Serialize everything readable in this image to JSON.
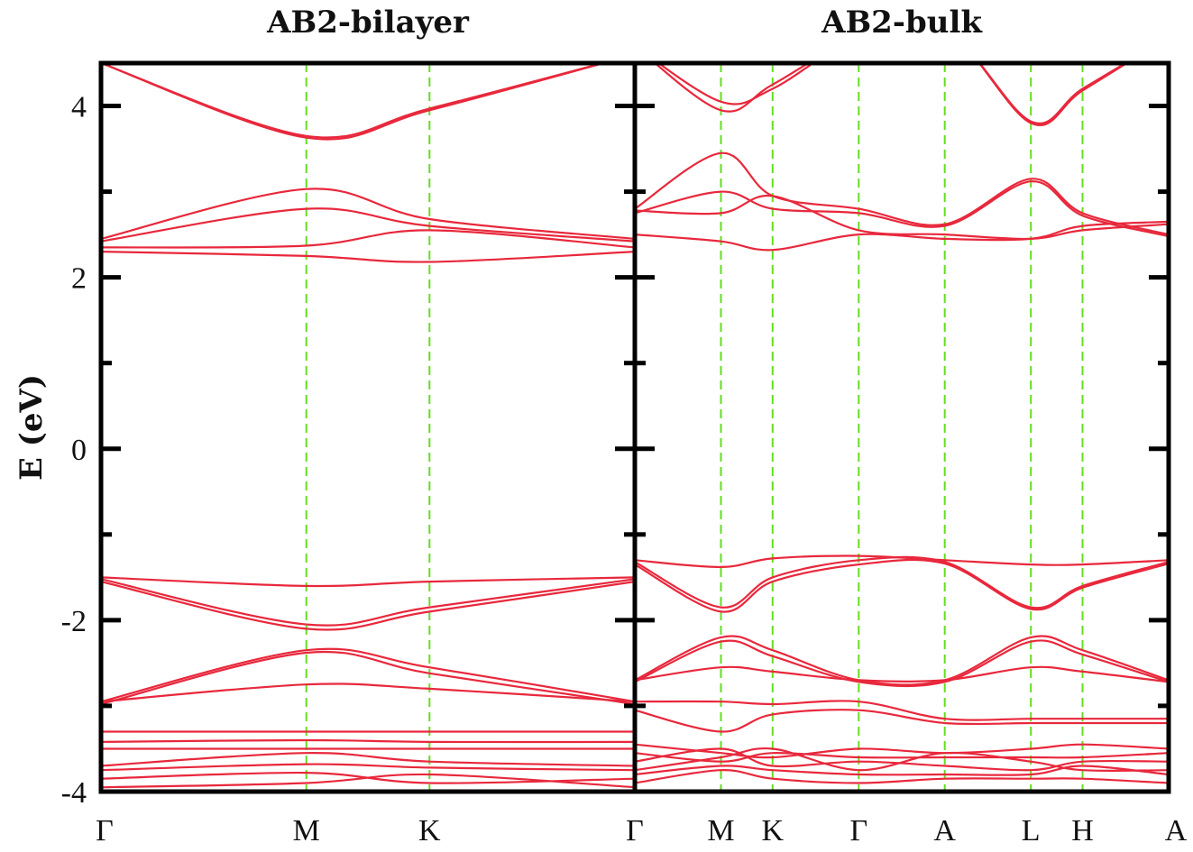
{
  "chart_data": {
    "type": "line",
    "ylabel": "E (eV)",
    "ylim": [
      -4,
      4.5
    ],
    "yticks": [
      "4",
      "2",
      "0",
      "-2",
      "-4"
    ],
    "line_color": "#e8283c",
    "symmetry_line_color": "#66dd22",
    "panels": [
      {
        "title": "AB2-bilayer",
        "kpath": [
          "Γ",
          "M",
          "K",
          "Γ"
        ],
        "kpos": [
          0,
          1,
          1.6,
          2.6
        ],
        "bands": [
          {
            "x": [
              0,
              1,
              1.6,
              2.6
            ],
            "y": [
              4.5,
              3.65,
              3.97,
              4.6
            ]
          },
          {
            "x": [
              0,
              1,
              1.6,
              2.6
            ],
            "y": [
              4.5,
              3.63,
              3.95,
              4.6
            ]
          },
          {
            "x": [
              0,
              1,
              1.6,
              2.6
            ],
            "y": [
              2.45,
              3.03,
              2.68,
              2.45
            ]
          },
          {
            "x": [
              0,
              1,
              1.6,
              2.6
            ],
            "y": [
              2.42,
              2.8,
              2.6,
              2.42
            ]
          },
          {
            "x": [
              0,
              1,
              1.6,
              2.6
            ],
            "y": [
              2.35,
              2.37,
              2.55,
              2.35
            ]
          },
          {
            "x": [
              0,
              1,
              1.6,
              2.6
            ],
            "y": [
              2.3,
              2.25,
              2.18,
              2.3
            ]
          },
          {
            "x": [
              0,
              1,
              1.6,
              2.6
            ],
            "y": [
              -1.5,
              -1.6,
              -1.55,
              -1.5
            ]
          },
          {
            "x": [
              0,
              1,
              1.6,
              2.6
            ],
            "y": [
              -1.52,
              -2.05,
              -1.85,
              -1.52
            ]
          },
          {
            "x": [
              0,
              1,
              1.6,
              2.6
            ],
            "y": [
              -1.55,
              -2.1,
              -1.9,
              -1.55
            ]
          },
          {
            "x": [
              0,
              1,
              1.6,
              2.6
            ],
            "y": [
              -2.95,
              -2.35,
              -2.55,
              -2.95
            ]
          },
          {
            "x": [
              0,
              1,
              1.6,
              2.6
            ],
            "y": [
              -2.98,
              -2.38,
              -2.62,
              -2.98
            ]
          },
          {
            "x": [
              0,
              1,
              1.6,
              2.6
            ],
            "y": [
              -2.95,
              -2.75,
              -2.8,
              -2.95
            ]
          },
          {
            "x": [
              0,
              1,
              1.6,
              2.6
            ],
            "y": [
              -3.3,
              -3.3,
              -3.3,
              -3.3
            ]
          },
          {
            "x": [
              0,
              1,
              1.6,
              2.6
            ],
            "y": [
              -3.42,
              -3.4,
              -3.42,
              -3.42
            ]
          },
          {
            "x": [
              0,
              1,
              1.6,
              2.6
            ],
            "y": [
              -3.5,
              -3.5,
              -3.5,
              -3.5
            ]
          },
          {
            "x": [
              0,
              1,
              1.6,
              2.6
            ],
            "y": [
              -3.7,
              -3.55,
              -3.65,
              -3.7
            ]
          },
          {
            "x": [
              0,
              1,
              1.6,
              2.6
            ],
            "y": [
              -3.75,
              -3.68,
              -3.72,
              -3.75
            ]
          },
          {
            "x": [
              0,
              1,
              1.6,
              2.6
            ],
            "y": [
              -3.85,
              -3.78,
              -3.9,
              -3.85
            ]
          },
          {
            "x": [
              0,
              1,
              1.6,
              2.6
            ],
            "y": [
              -3.95,
              -3.9,
              -3.8,
              -3.95
            ]
          }
        ]
      },
      {
        "title": "AB2-bulk",
        "kpath": [
          "Γ",
          "M",
          "K",
          "Γ",
          "A",
          "L",
          "H",
          "A"
        ],
        "kpos": [
          0,
          1,
          1.6,
          2.6,
          3.6,
          4.6,
          5.2,
          6.2
        ],
        "bands": [
          {
            "x": [
              0,
              1,
              1.6,
              2.6,
              3.6,
              4.6,
              5.2,
              6.2
            ],
            "y": [
              4.7,
              3.95,
              4.25,
              4.8,
              4.9,
              3.82,
              4.2,
              4.8
            ]
          },
          {
            "x": [
              0,
              1,
              1.6,
              2.6,
              3.6,
              4.6,
              5.2,
              6.2
            ],
            "y": [
              4.7,
              4.05,
              4.2,
              4.8,
              4.9,
              3.8,
              4.18,
              4.8
            ]
          },
          {
            "x": [
              0,
              1,
              1.6,
              2.6,
              3.6,
              4.6,
              5.2,
              6.2
            ],
            "y": [
              2.8,
              3.45,
              2.95,
              2.8,
              2.62,
              3.15,
              2.75,
              2.5
            ]
          },
          {
            "x": [
              0,
              1,
              1.6,
              2.6,
              3.6,
              4.6,
              5.2,
              6.2
            ],
            "y": [
              2.75,
              3.0,
              2.8,
              2.75,
              2.6,
              3.12,
              2.72,
              2.48
            ]
          },
          {
            "x": [
              0,
              1,
              1.6,
              2.6,
              3.6,
              4.6,
              5.2,
              6.2
            ],
            "y": [
              2.78,
              2.75,
              2.95,
              2.55,
              2.5,
              2.45,
              2.55,
              2.62
            ]
          },
          {
            "x": [
              0,
              1,
              1.6,
              2.6,
              3.6,
              4.6,
              5.2,
              6.2
            ],
            "y": [
              2.5,
              2.42,
              2.32,
              2.5,
              2.45,
              2.45,
              2.6,
              2.65
            ]
          },
          {
            "x": [
              0,
              1,
              1.6,
              2.6,
              3.6,
              4.6,
              5.2,
              6.2
            ],
            "y": [
              -1.3,
              -1.38,
              -1.28,
              -1.25,
              -1.3,
              -1.35,
              -1.35,
              -1.3
            ]
          },
          {
            "x": [
              0,
              1,
              1.6,
              2.6,
              3.6,
              4.6,
              5.2,
              6.2
            ],
            "y": [
              -1.32,
              -1.85,
              -1.5,
              -1.3,
              -1.32,
              -1.85,
              -1.6,
              -1.32
            ]
          },
          {
            "x": [
              0,
              1,
              1.6,
              2.6,
              3.6,
              4.6,
              5.2,
              6.2
            ],
            "y": [
              -1.35,
              -1.9,
              -1.55,
              -1.35,
              -1.34,
              -1.87,
              -1.62,
              -1.34
            ]
          },
          {
            "x": [
              0,
              1,
              1.6,
              2.6,
              3.6,
              4.6,
              5.2,
              6.2
            ],
            "y": [
              -2.7,
              -2.2,
              -2.35,
              -2.7,
              -2.7,
              -2.2,
              -2.35,
              -2.7
            ]
          },
          {
            "x": [
              0,
              1,
              1.6,
              2.6,
              3.6,
              4.6,
              5.2,
              6.2
            ],
            "y": [
              -2.72,
              -2.25,
              -2.42,
              -2.72,
              -2.72,
              -2.25,
              -2.4,
              -2.72
            ]
          },
          {
            "x": [
              0,
              1,
              1.6,
              2.6,
              3.6,
              4.6,
              5.2,
              6.2
            ],
            "y": [
              -2.7,
              -2.55,
              -2.6,
              -2.7,
              -2.7,
              -2.55,
              -2.6,
              -2.72
            ]
          },
          {
            "x": [
              0,
              1,
              1.6,
              2.6,
              3.6,
              4.6,
              5.2,
              6.2
            ],
            "y": [
              -2.95,
              -2.95,
              -2.98,
              -2.95,
              -3.15,
              -3.15,
              -3.15,
              -3.15
            ]
          },
          {
            "x": [
              0,
              1,
              1.6,
              2.6,
              3.6,
              4.6,
              5.2,
              6.2
            ],
            "y": [
              -3.05,
              -3.3,
              -3.1,
              -3.05,
              -3.2,
              -3.2,
              -3.2,
              -3.2
            ]
          },
          {
            "x": [
              0,
              1,
              1.6,
              2.6,
              3.6,
              4.6,
              5.2,
              6.2
            ],
            "y": [
              -3.45,
              -3.55,
              -3.6,
              -3.5,
              -3.55,
              -3.5,
              -3.45,
              -3.5
            ]
          },
          {
            "x": [
              0,
              1,
              1.6,
              2.6,
              3.6,
              4.6,
              5.2,
              6.2
            ],
            "y": [
              -3.55,
              -3.65,
              -3.55,
              -3.6,
              -3.6,
              -3.6,
              -3.6,
              -3.55
            ]
          },
          {
            "x": [
              0,
              1,
              1.6,
              2.6,
              3.6,
              4.6,
              5.2,
              6.2
            ],
            "y": [
              -3.65,
              -3.5,
              -3.7,
              -3.65,
              -3.7,
              -3.75,
              -3.65,
              -3.65
            ]
          },
          {
            "x": [
              0,
              1,
              1.6,
              2.6,
              3.6,
              4.6,
              5.2,
              6.2
            ],
            "y": [
              -3.75,
              -3.6,
              -3.5,
              -3.75,
              -3.55,
              -3.65,
              -3.75,
              -3.75
            ]
          },
          {
            "x": [
              0,
              1,
              1.6,
              2.6,
              3.6,
              4.6,
              5.2,
              6.2
            ],
            "y": [
              -3.8,
              -3.7,
              -3.75,
              -3.8,
              -3.8,
              -3.8,
              -3.7,
              -3.8
            ]
          },
          {
            "x": [
              0,
              1,
              1.6,
              2.6,
              3.6,
              4.6,
              5.2,
              6.2
            ],
            "y": [
              -3.9,
              -3.75,
              -3.85,
              -3.9,
              -3.85,
              -3.85,
              -3.85,
              -3.9
            ]
          }
        ]
      }
    ]
  }
}
